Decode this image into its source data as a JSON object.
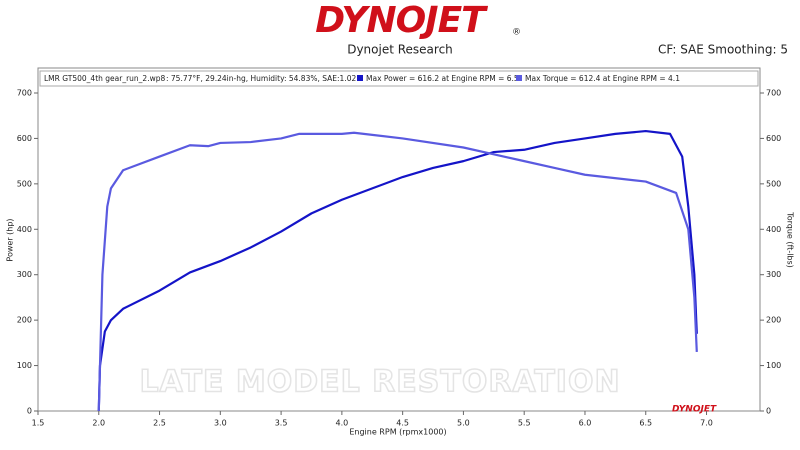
{
  "header": {
    "logo": "DYNOJET",
    "logo_mark": "®",
    "subtitle": "Dynojet Research",
    "settings": "CF: SAE Smoothing: 5"
  },
  "chart_data": {
    "type": "line",
    "run_name": "LMR GT500_4th gear_run_2.wp8",
    "conditions": ": 75.77°F, 29.24in-hg, Humidity: 54.83%, SAE:1.02",
    "watermark": "LATE MODEL RESTORATION",
    "corner_logo": "DYNOJET",
    "x_label": "Engine RPM (rpmx1000)",
    "y_label": "Power (hp)",
    "y2_label": "Torque (ft-lbs)",
    "xlim": [
      1.5,
      7.44
    ],
    "xticks": [
      {
        "value": 1.5,
        "label": "1.5"
      },
      {
        "value": 2,
        "label": "2.0"
      },
      {
        "value": 2.5,
        "label": "2.5"
      },
      {
        "value": 3,
        "label": "3.0"
      },
      {
        "value": 3.5,
        "label": "3.5"
      },
      {
        "value": 4,
        "label": "4.0"
      },
      {
        "value": 4.5,
        "label": "4.5"
      },
      {
        "value": 5,
        "label": "5.0"
      },
      {
        "value": 5.5,
        "label": "5.5"
      },
      {
        "value": 6,
        "label": "6.0"
      },
      {
        "value": 6.5,
        "label": "6.5"
      },
      {
        "value": 7,
        "label": "7.0"
      }
    ],
    "ylim": [
      0,
      755
    ],
    "yticks": [
      0,
      100,
      200,
      300,
      400,
      500,
      600,
      700
    ],
    "y2lim": [
      0,
      755
    ],
    "y2ticks": [
      0,
      100,
      200,
      300,
      400,
      500,
      600,
      700
    ],
    "grid": false,
    "series": [
      {
        "name": "Max Power = 616.2 at Engine RPM = 6.5",
        "color": "#1414c8",
        "x": [
          2.0,
          2.01,
          2.05,
          2.1,
          2.2,
          2.5,
          2.75,
          3.0,
          3.25,
          3.5,
          3.75,
          4.0,
          4.25,
          4.5,
          4.75,
          5.0,
          5.25,
          5.5,
          5.75,
          6.0,
          6.25,
          6.5,
          6.7,
          6.8,
          6.85,
          6.9,
          6.92
        ],
        "values": [
          0,
          100,
          175,
          200,
          225,
          265,
          305,
          330,
          360,
          395,
          435,
          465,
          490,
          515,
          535,
          550,
          570,
          575,
          590,
          600,
          610,
          616.2,
          610,
          560,
          450,
          300,
          170
        ]
      },
      {
        "name": "Max Torque = 612.4 at Engine RPM = 4.1",
        "color": "#5a5ae0",
        "axis": "y2",
        "x": [
          2.0,
          2.03,
          2.07,
          2.1,
          2.2,
          2.5,
          2.75,
          2.9,
          3.0,
          3.25,
          3.5,
          3.65,
          4.0,
          4.1,
          4.5,
          5.0,
          5.25,
          5.5,
          5.75,
          6.0,
          6.5,
          6.75,
          6.85,
          6.9,
          6.92
        ],
        "values": [
          0,
          300,
          450,
          490,
          530,
          560,
          585,
          583,
          590,
          592,
          600,
          610,
          610,
          612.4,
          600,
          580,
          565,
          550,
          535,
          520,
          505,
          480,
          400,
          250,
          130
        ]
      }
    ]
  }
}
